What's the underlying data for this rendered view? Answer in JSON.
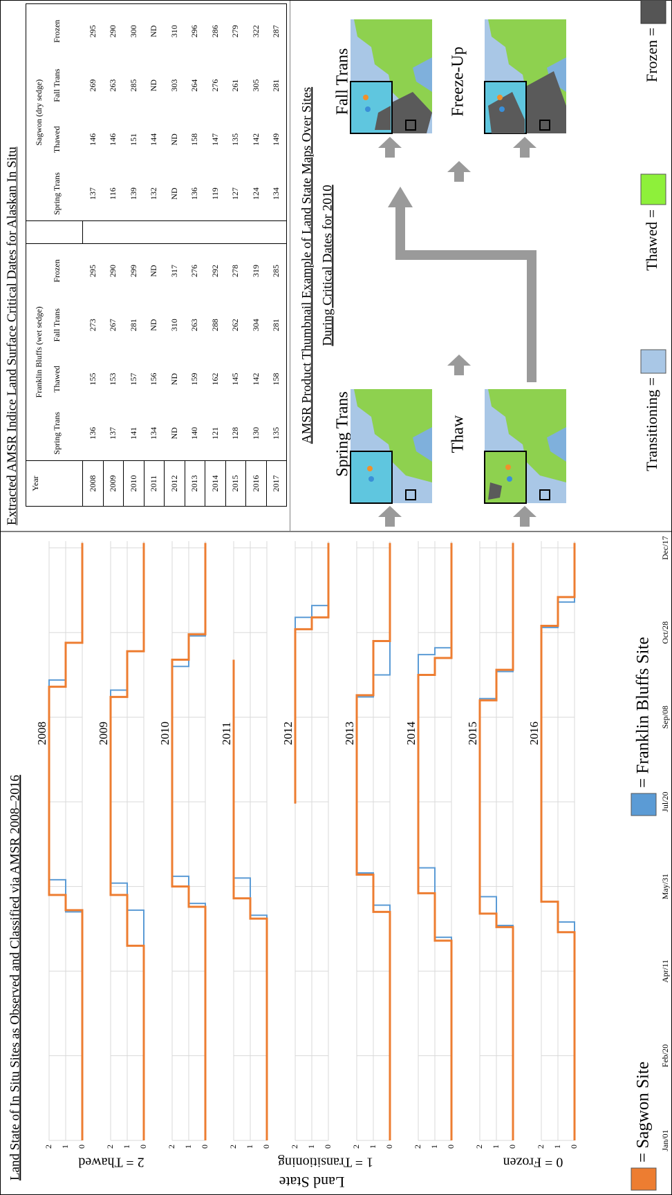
{
  "chart_data": {
    "type": "line",
    "title": "Land State of In Situ Sites as Observed and Classified via AMSR 2008–2016",
    "ylabel": "Land State",
    "state_labels": [
      "2 = Thawed",
      "1 = Transitioning",
      "0 = Frozen"
    ],
    "xlim": [
      1,
      355
    ],
    "xticks": [
      {
        "value": 1,
        "label": "Jan/01"
      },
      {
        "value": 51,
        "label": "Feb/20"
      },
      {
        "value": 101,
        "label": "Apr/11"
      },
      {
        "value": 151,
        "label": "May/31"
      },
      {
        "value": 201,
        "label": "Jul/20"
      },
      {
        "value": 251,
        "label": "Sep/08"
      },
      {
        "value": 301,
        "label": "Oct/28"
      },
      {
        "value": 351,
        "label": "Dec/17"
      }
    ],
    "ylim": [
      0,
      2
    ],
    "yticks": [
      0,
      1,
      2
    ],
    "grid": true,
    "legend": [
      {
        "name": "= Sagwon Site",
        "color": "#ed7d31"
      },
      {
        "name": "= Franklin Bluffs Site",
        "color": "#5b9bd5"
      }
    ],
    "panels": [
      {
        "label": "2008",
        "series": [
          {
            "x": [
              1,
              137,
              137,
              146,
              146,
              269,
              269,
              295,
              295,
              354
            ],
            "values": [
              0,
              0,
              1,
              1,
              2,
              2,
              1,
              1,
              0,
              0
            ]
          },
          {
            "x": [
              1,
              136,
              136,
              155,
              155,
              273,
              273,
              295,
              295,
              354
            ],
            "values": [
              0,
              0,
              1,
              1,
              2,
              2,
              1,
              1,
              0,
              0
            ]
          }
        ]
      },
      {
        "label": "2009",
        "series": [
          {
            "x": [
              1,
              116,
              116,
              146,
              146,
              263,
              263,
              290,
              290,
              354
            ],
            "values": [
              0,
              0,
              1,
              1,
              2,
              2,
              1,
              1,
              0,
              0
            ]
          },
          {
            "x": [
              1,
              137,
              137,
              153,
              153,
              267,
              267,
              290,
              290,
              354
            ],
            "values": [
              0,
              0,
              1,
              1,
              2,
              2,
              1,
              1,
              0,
              0
            ]
          }
        ]
      },
      {
        "label": "2010",
        "series": [
          {
            "x": [
              1,
              139,
              139,
              151,
              151,
              285,
              285,
              300,
              300,
              354
            ],
            "values": [
              0,
              0,
              1,
              1,
              2,
              2,
              1,
              1,
              0,
              0
            ]
          },
          {
            "x": [
              1,
              141,
              141,
              157,
              157,
              281,
              281,
              299,
              299,
              354
            ],
            "values": [
              0,
              0,
              1,
              1,
              2,
              2,
              1,
              1,
              0,
              0
            ]
          }
        ]
      },
      {
        "label": "2011",
        "series": [
          {
            "x": [
              1,
              132,
              132,
              144,
              144,
              285
            ],
            "values": [
              0,
              0,
              1,
              1,
              2,
              2
            ]
          },
          {
            "x": [
              1,
              134,
              134,
              156,
              156,
              285
            ],
            "values": [
              0,
              0,
              1,
              1,
              2,
              2
            ]
          }
        ]
      },
      {
        "label": "2012",
        "series": [
          {
            "x": [
              200,
              303,
              303,
              310,
              310,
              354
            ],
            "values": [
              2,
              2,
              1,
              1,
              0,
              0
            ]
          },
          {
            "x": [
              200,
              310,
              310,
              317,
              317,
              354
            ],
            "values": [
              2,
              2,
              1,
              1,
              0,
              0
            ]
          }
        ]
      },
      {
        "label": "2013",
        "series": [
          {
            "x": [
              1,
              136,
              136,
              158,
              158,
              264,
              264,
              296,
              296,
              354
            ],
            "values": [
              0,
              0,
              1,
              1,
              2,
              2,
              1,
              1,
              0,
              0
            ]
          },
          {
            "x": [
              1,
              140,
              140,
              159,
              159,
              263,
              263,
              276,
              276,
              354
            ],
            "values": [
              0,
              0,
              1,
              1,
              2,
              2,
              1,
              1,
              0,
              0
            ]
          }
        ]
      },
      {
        "label": "2014",
        "series": [
          {
            "x": [
              1,
              119,
              119,
              147,
              147,
              276,
              276,
              286,
              286,
              354
            ],
            "values": [
              0,
              0,
              1,
              1,
              2,
              2,
              1,
              1,
              0,
              0
            ]
          },
          {
            "x": [
              1,
              121,
              121,
              162,
              162,
              288,
              288,
              292,
              292,
              354
            ],
            "values": [
              0,
              0,
              1,
              1,
              2,
              2,
              1,
              1,
              0,
              0
            ]
          }
        ]
      },
      {
        "label": "2015",
        "series": [
          {
            "x": [
              1,
              127,
              127,
              135,
              135,
              261,
              261,
              279,
              279,
              354
            ],
            "values": [
              0,
              0,
              1,
              1,
              2,
              2,
              1,
              1,
              0,
              0
            ]
          },
          {
            "x": [
              1,
              128,
              128,
              145,
              145,
              262,
              262,
              278,
              278,
              354
            ],
            "values": [
              0,
              0,
              1,
              1,
              2,
              2,
              1,
              1,
              0,
              0
            ]
          }
        ]
      },
      {
        "label": "2016",
        "series": [
          {
            "x": [
              1,
              124,
              124,
              142,
              142,
              305,
              305,
              322,
              322,
              354
            ],
            "values": [
              0,
              0,
              1,
              1,
              2,
              2,
              1,
              1,
              0,
              0
            ]
          },
          {
            "x": [
              1,
              130,
              130,
              142,
              142,
              304,
              304,
              319,
              319,
              354
            ],
            "values": [
              0,
              0,
              1,
              1,
              2,
              2,
              1,
              1,
              0,
              0
            ]
          }
        ]
      }
    ]
  },
  "table": {
    "title": "Extracted AMSR Indice Land Surface Critical Dates for Alaskan In Situ",
    "year_header": "Year",
    "groups": [
      {
        "name": "Franklin Bluffs (wet sedge)",
        "subs": [
          "Spring Trans",
          "Thawed",
          "Fall Trans",
          "Frozen"
        ]
      },
      {
        "name": "Sagwon (dry sedge)",
        "subs": [
          "Spring Trans",
          "Thawed",
          "Fall Trans",
          "Frozen"
        ]
      }
    ],
    "rows": [
      [
        "2008",
        136,
        155,
        273,
        295,
        137,
        146,
        269,
        295
      ],
      [
        "2009",
        137,
        153,
        267,
        290,
        116,
        146,
        263,
        290
      ],
      [
        "2010",
        141,
        157,
        281,
        299,
        139,
        151,
        285,
        300
      ],
      [
        "2011",
        134,
        156,
        "ND",
        "ND",
        132,
        144,
        "ND",
        "ND"
      ],
      [
        "2012",
        "ND",
        "ND",
        310,
        317,
        "ND",
        "ND",
        303,
        310
      ],
      [
        "2013",
        140,
        159,
        263,
        276,
        136,
        158,
        264,
        296
      ],
      [
        "2014",
        121,
        162,
        288,
        292,
        119,
        147,
        276,
        286
      ],
      [
        "2015",
        128,
        145,
        262,
        278,
        127,
        135,
        261,
        279
      ],
      [
        "2016",
        130,
        142,
        304,
        319,
        124,
        142,
        305,
        322
      ],
      [
        "2017",
        135,
        158,
        281,
        285,
        134,
        149,
        281,
        287
      ]
    ]
  },
  "maps": {
    "title_lines": [
      "AMSR Product Thumbnail Example of Land State Maps Over Sites",
      "During Critical Dates for 2010"
    ],
    "labels": [
      "Spring Trans",
      "Thaw",
      "Fall Trans",
      "Freeze-Up"
    ],
    "legend": [
      "Transitioning =",
      "Thawed =",
      "Frozen ="
    ]
  }
}
